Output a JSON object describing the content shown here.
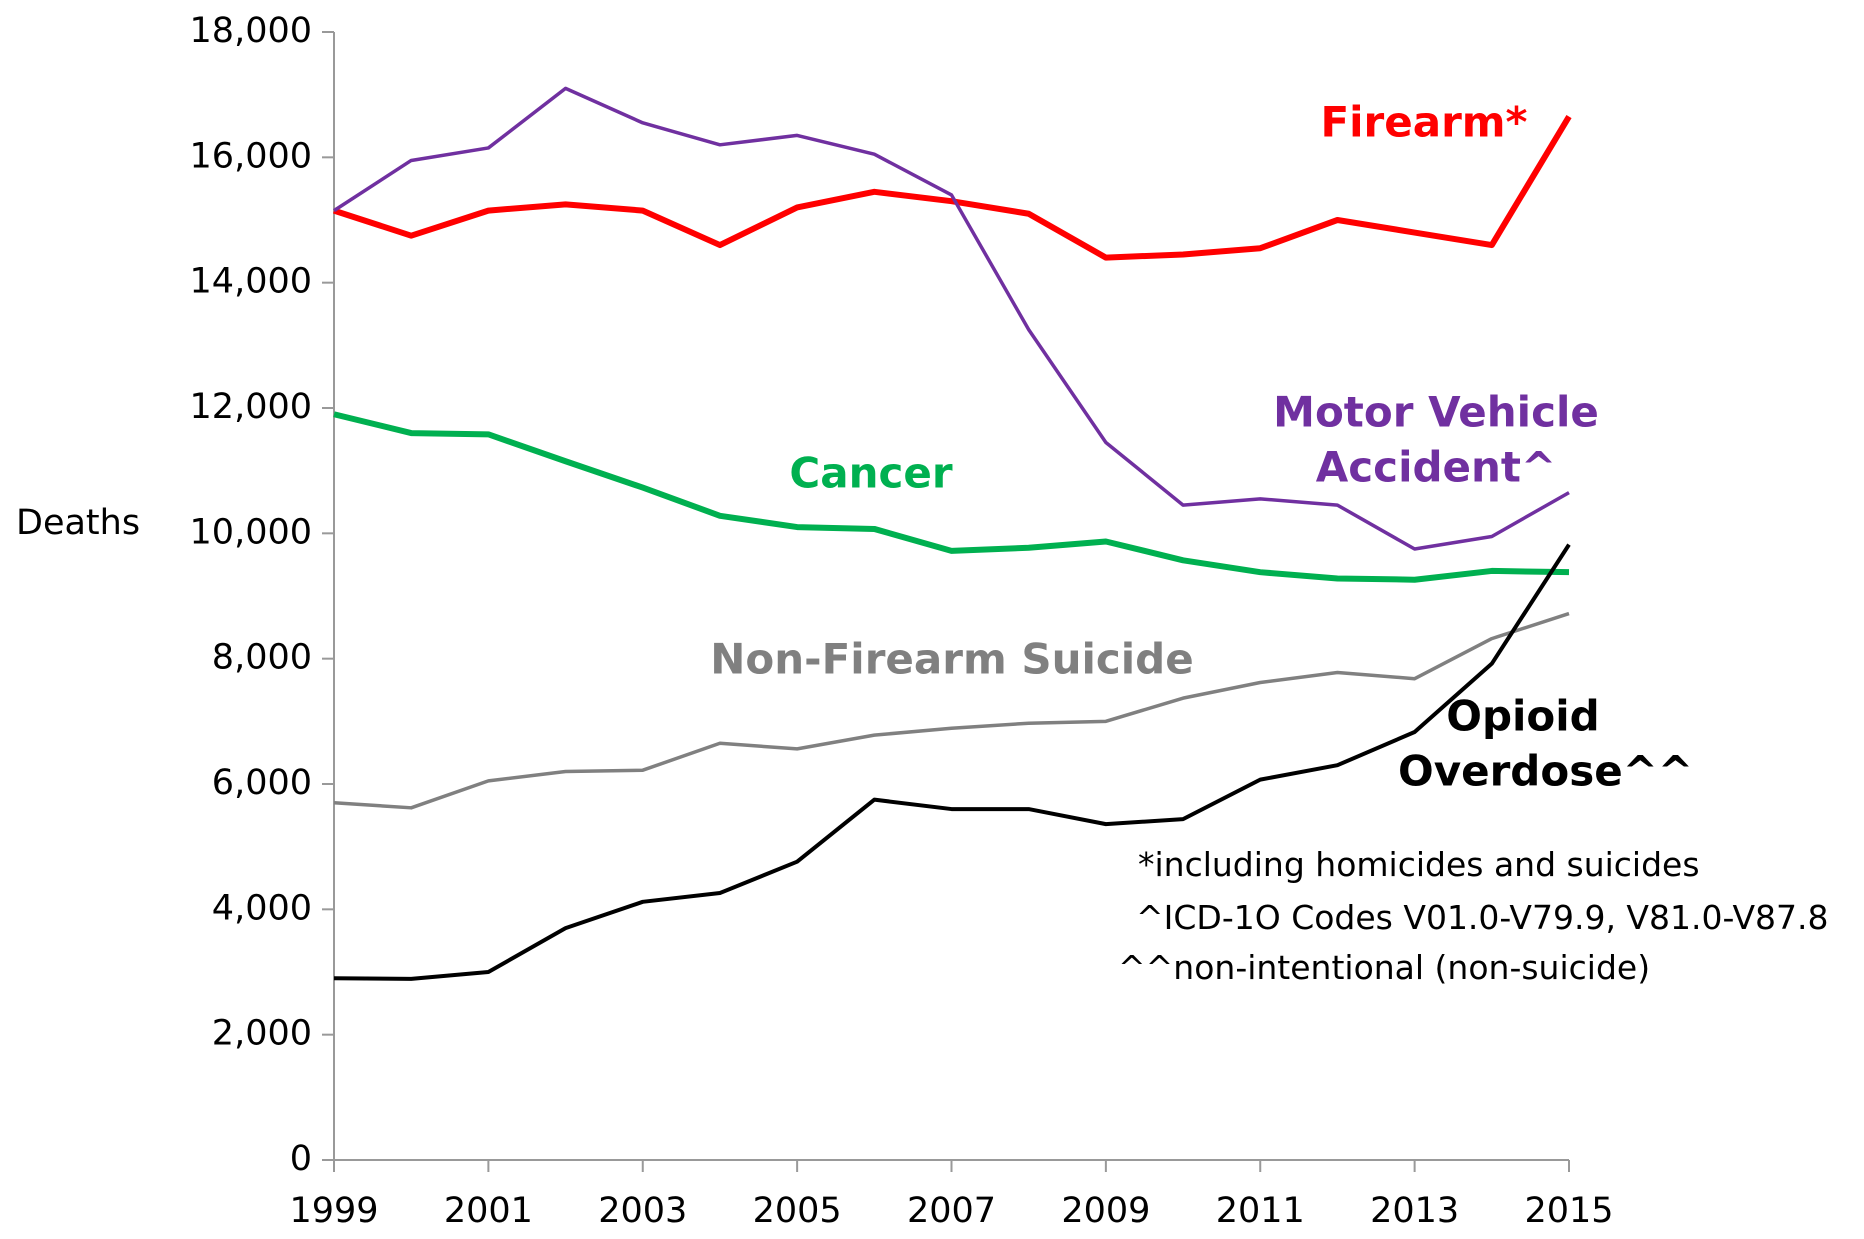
{
  "chart_data": {
    "type": "line",
    "y_label": "Deaths",
    "x": [
      1999,
      2000,
      2001,
      2002,
      2003,
      2004,
      2005,
      2006,
      2007,
      2008,
      2009,
      2010,
      2011,
      2012,
      2013,
      2014,
      2015
    ],
    "xlim": [
      1999,
      2015
    ],
    "xticks": [
      1999,
      2001,
      2003,
      2005,
      2007,
      2009,
      2011,
      2013,
      2015
    ],
    "ylim": [
      0,
      18000
    ],
    "yticks": [
      0,
      {
        "value": 2000,
        "label": "2,000"
      },
      {
        "value": 4000,
        "label": "4,000"
      },
      {
        "value": 6000,
        "label": "6,000"
      },
      {
        "value": 8000,
        "label": "8,000"
      },
      {
        "value": 10000,
        "label": "10,000"
      },
      {
        "value": 12000,
        "label": "12,000"
      },
      {
        "value": 14000,
        "label": "14,000"
      },
      {
        "value": 16000,
        "label": "16,000"
      },
      {
        "value": 18000,
        "label": "18,000"
      }
    ],
    "grid": false,
    "series": [
      {
        "name": "Firearm*",
        "color": "#ff0000",
        "values": [
          15150,
          14750,
          15150,
          15250,
          15150,
          14600,
          15200,
          15450,
          15300,
          15100,
          14400,
          14450,
          14550,
          15000,
          14800,
          14600,
          16650
        ]
      },
      {
        "name": "Motor Vehicle Accident^",
        "color": "#7030a0",
        "values": [
          15150,
          15950,
          16150,
          17100,
          16550,
          16200,
          16350,
          16050,
          15400,
          13250,
          11450,
          10450,
          10550,
          10450,
          9750,
          9950,
          10650
        ]
      },
      {
        "name": "Cancer",
        "color": "#00b050",
        "values": [
          11900,
          11600,
          11580,
          11150,
          10730,
          10280,
          10100,
          10070,
          9720,
          9770,
          9870,
          9570,
          9380,
          9280,
          9260,
          9400,
          9380
        ]
      },
      {
        "name": "Non-Firearm Suicide",
        "color": "#808080",
        "values": [
          5700,
          5620,
          6050,
          6200,
          6220,
          6650,
          6560,
          6780,
          6890,
          6970,
          7000,
          7370,
          7620,
          7780,
          7680,
          8320,
          8720
        ]
      },
      {
        "name": "Opioid Overdose^^",
        "color": "#000000",
        "values": [
          2900,
          2890,
          3000,
          3700,
          4120,
          4260,
          4760,
          5750,
          5600,
          5600,
          5360,
          5440,
          6070,
          6300,
          6830,
          7920,
          9820
        ]
      }
    ],
    "annotations": [
      "*including homicides and suicides",
      "^ICD-1O Codes V01.0-V79.9, V81.0-V87.8",
      "^^non-intentional (non-suicide)"
    ]
  }
}
